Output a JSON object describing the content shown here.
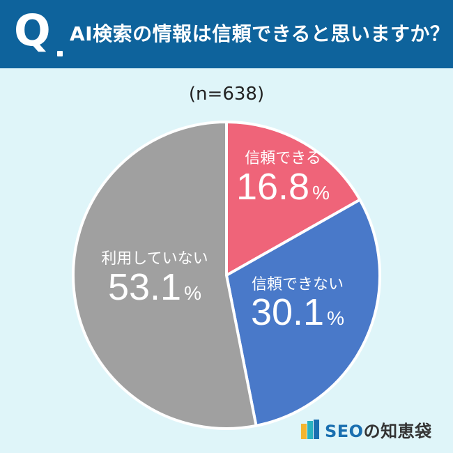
{
  "header": {
    "q_letter": "Q",
    "question": "AI検索の情報は信頼できると思いますか？"
  },
  "sample": "(n=638)",
  "chart_data": {
    "type": "pie",
    "title": "AI検索の情報は信頼できると思いますか？",
    "subtitle": "(n=638)",
    "start": "12 o'clock",
    "direction": "clockwise",
    "slices": [
      {
        "label": "信頼できる",
        "value": 16.8,
        "value_text": "16.8",
        "color": "#ef6479"
      },
      {
        "label": "信頼できない",
        "value": 30.1,
        "value_text": "30.1",
        "color": "#4979c9"
      },
      {
        "label": "利用していない",
        "value": 53.1,
        "value_text": "53.1",
        "color": "#a0a0a0"
      }
    ],
    "unit": "%"
  },
  "logo": {
    "brand": "SEO",
    "suffix": "の知恵袋",
    "colors": [
      "#f5b52e",
      "#2bb3c0",
      "#1a6fb0"
    ]
  }
}
